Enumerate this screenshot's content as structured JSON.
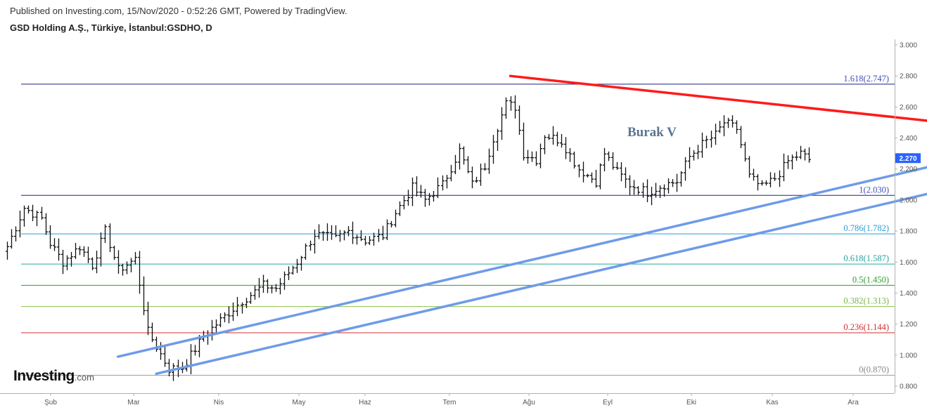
{
  "header": {
    "published": "Published on Investing.com, 15/Nov/2020 - 0:52:26 GMT, Powered by TradingView.",
    "symbol": "GSD Holding A.Ş., Türkiye, İstanbul:GSDHO, D"
  },
  "logo": {
    "brand": "Investing",
    "suffix": ".com"
  },
  "chart_data": {
    "type": "ohlc",
    "timeframe": "D",
    "x_ticks": [
      "Şub",
      "Mar",
      "Nis",
      "May",
      "Haz",
      "Tem",
      "Ağu",
      "Eyl",
      "Eki",
      "Kas",
      "Ara"
    ],
    "y_ticks": [
      "0.800",
      "1.000",
      "1.200",
      "1.400",
      "1.600",
      "1.800",
      "2.000",
      "2.200",
      "2.400",
      "2.600",
      "2.800",
      "3.000"
    ],
    "ylim": [
      0.78,
      3.04
    ],
    "last_price": "2.270",
    "last_price_color": "#2962ff",
    "fib_levels": [
      {
        "label": "1.618(2.747)",
        "value": 2.747,
        "color": "#1a237e",
        "text_color": "#3f51b5"
      },
      {
        "label": "1(2.030)",
        "value": 2.03,
        "color": "#1a237e",
        "text_color": "#3f51b5"
      },
      {
        "label": "0.786(1.782)",
        "value": 1.782,
        "color": "#2a9fd6",
        "text_color": "#2a9fd6"
      },
      {
        "label": "0.618(1.587)",
        "value": 1.587,
        "color": "#26a69a",
        "text_color": "#26a69a"
      },
      {
        "label": "0.5(1.450)",
        "value": 1.45,
        "color": "#2e9d2e",
        "text_color": "#2e9d2e"
      },
      {
        "label": "0.382(1.313)",
        "value": 1.313,
        "color": "#8bc34a",
        "text_color": "#7cb342"
      },
      {
        "label": "0.236(1.144)",
        "value": 1.144,
        "color": "#d32f2f",
        "text_color": "#d32f2f"
      },
      {
        "label": "0(0.870)",
        "value": 0.87,
        "color": "#9e9e9e",
        "text_color": "#888888"
      }
    ],
    "trendlines": [
      {
        "name": "resistance",
        "color": "#ff1a1a",
        "from": [
          118,
          2.8
        ],
        "to": [
          240,
          2.44
        ]
      },
      {
        "name": "support-upper",
        "color": "#6e9be8",
        "from": [
          26,
          0.99
        ],
        "to": [
          242,
          2.38
        ]
      },
      {
        "name": "support-lower",
        "color": "#6e9be8",
        "from": [
          35,
          0.88
        ],
        "to": [
          244,
          2.22
        ]
      }
    ],
    "annotations": [
      {
        "text": "Burak V",
        "color": "#5b7590"
      }
    ],
    "waypoints": [
      [
        0,
        1.7
      ],
      [
        4,
        1.95
      ],
      [
        8,
        1.88
      ],
      [
        10,
        1.72
      ],
      [
        13,
        1.6
      ],
      [
        17,
        1.7
      ],
      [
        20,
        1.58
      ],
      [
        23,
        1.8
      ],
      [
        26,
        1.55
      ],
      [
        30,
        1.62
      ],
      [
        33,
        1.15
      ],
      [
        38,
        0.91
      ],
      [
        41,
        0.92
      ],
      [
        46,
        1.12
      ],
      [
        49,
        1.2
      ],
      [
        55,
        1.35
      ],
      [
        60,
        1.45
      ],
      [
        63,
        1.43
      ],
      [
        68,
        1.6
      ],
      [
        72,
        1.78
      ],
      [
        77,
        1.75
      ],
      [
        80,
        1.8
      ],
      [
        84,
        1.74
      ],
      [
        88,
        1.77
      ],
      [
        91,
        1.92
      ],
      [
        95,
        2.08
      ],
      [
        98,
        2.0
      ],
      [
        102,
        2.1
      ],
      [
        106,
        2.32
      ],
      [
        109,
        2.1
      ],
      [
        112,
        2.22
      ],
      [
        114,
        2.4
      ],
      [
        117,
        2.62
      ],
      [
        119,
        2.6
      ],
      [
        121,
        2.3
      ],
      [
        124,
        2.26
      ],
      [
        126,
        2.42
      ],
      [
        130,
        2.38
      ],
      [
        134,
        2.2
      ],
      [
        138,
        2.12
      ],
      [
        140,
        2.3
      ],
      [
        143,
        2.18
      ],
      [
        146,
        2.1
      ],
      [
        150,
        2.05
      ],
      [
        154,
        2.1
      ],
      [
        157,
        2.12
      ],
      [
        160,
        2.28
      ],
      [
        163,
        2.36
      ],
      [
        166,
        2.42
      ],
      [
        168,
        2.5
      ],
      [
        171,
        2.46
      ],
      [
        174,
        2.15
      ],
      [
        177,
        2.08
      ],
      [
        180,
        2.14
      ],
      [
        183,
        2.25
      ],
      [
        186,
        2.3
      ],
      [
        188,
        2.26
      ]
    ]
  }
}
